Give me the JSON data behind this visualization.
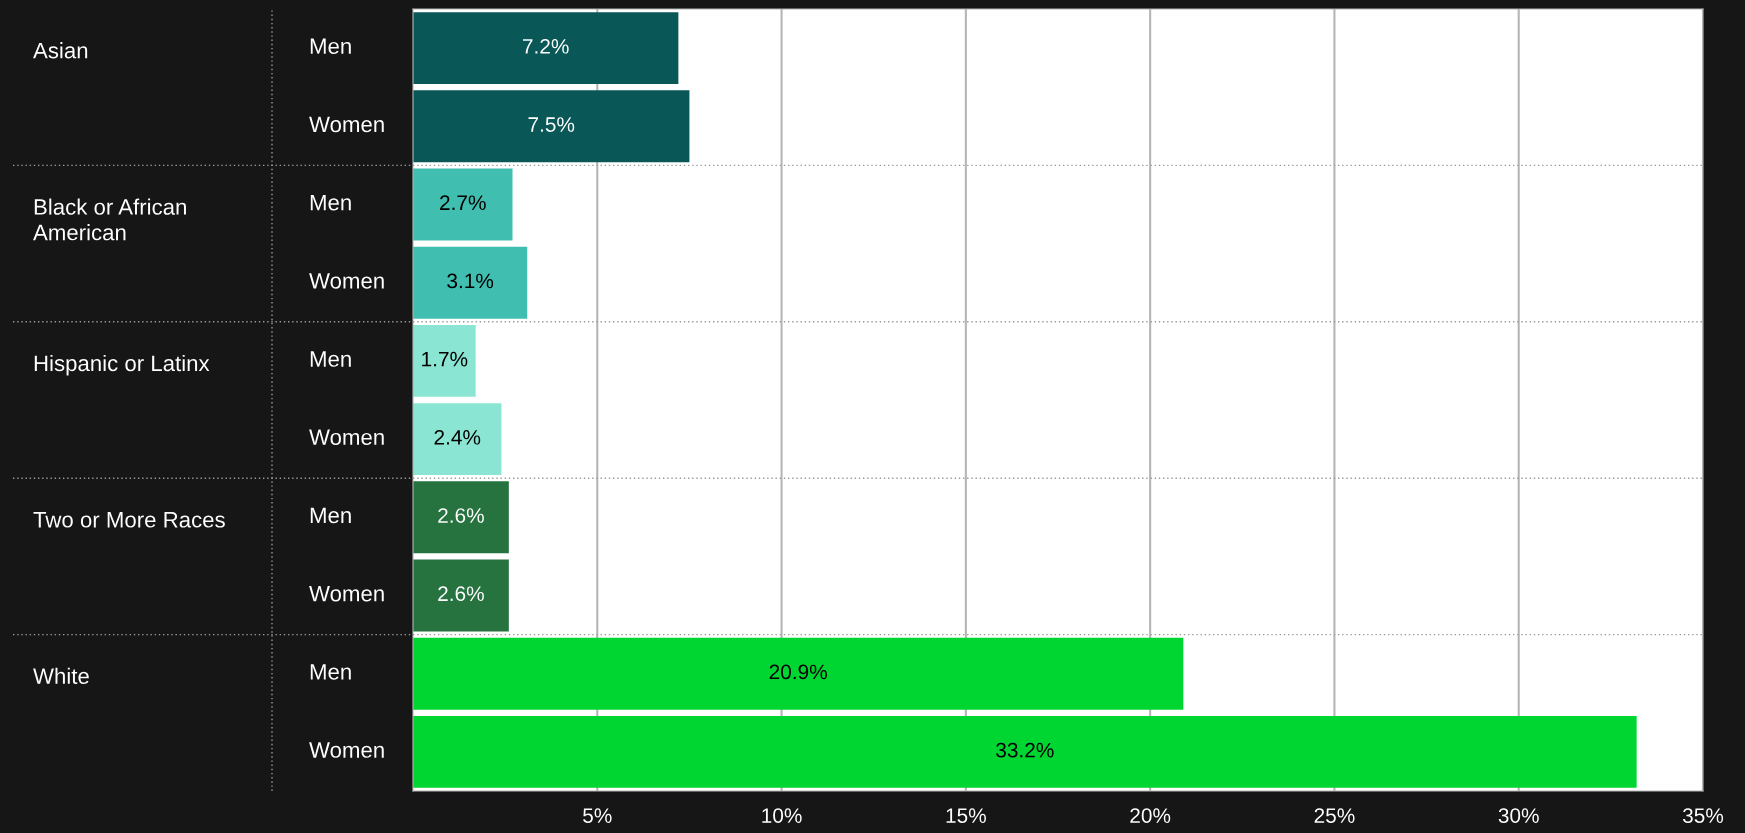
{
  "chart_data": {
    "type": "bar",
    "orientation": "horizontal",
    "categories": [
      "Men",
      "Women",
      "Men",
      "Women",
      "Men",
      "Women",
      "Men",
      "Women",
      "Men",
      "Women"
    ],
    "values": [
      7.2,
      7.5,
      2.7,
      3.1,
      1.7,
      2.4,
      2.6,
      2.6,
      20.9,
      33.2
    ],
    "value_labels": [
      "7.2%",
      "7.5%",
      "2.7%",
      "3.1%",
      "1.7%",
      "2.4%",
      "2.6%",
      "2.6%",
      "20.9%",
      "33.2%"
    ],
    "colors": [
      "#0a5757",
      "#0a5757",
      "#40bfb0",
      "#40bfb0",
      "#8ae6d2",
      "#8ae6d2",
      "#267340",
      "#267340",
      "#00d632",
      "#00d632"
    ],
    "annotations": [
      "Asian",
      "Black or African\nAmerican",
      "Hispanic or Latinx",
      "Two or More Races",
      "White"
    ],
    "xlim": [
      0,
      35
    ],
    "xticks": [
      {
        "value": 5,
        "label": "5%"
      },
      {
        "value": 10,
        "label": "10%"
      },
      {
        "value": 15,
        "label": "15%"
      },
      {
        "value": 20,
        "label": "20%"
      },
      {
        "value": 25,
        "label": "25%"
      },
      {
        "value": 30,
        "label": "30%"
      },
      {
        "value": 35,
        "label": "35%"
      }
    ],
    "grid": "x"
  }
}
